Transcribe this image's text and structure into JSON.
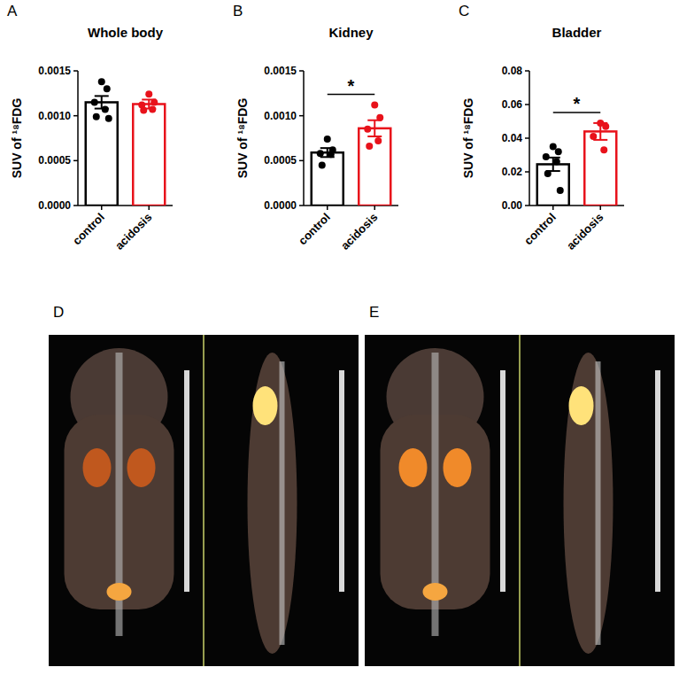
{
  "chart_data": [
    {
      "panel": "A",
      "type": "bar",
      "title": "Whole body",
      "ylabel": "SUV of ¹⁸FDG",
      "categories": [
        "control",
        "acidosis"
      ],
      "values": [
        0.00115,
        0.00113
      ],
      "errors": [
        7e-05,
        5e-05
      ],
      "points": [
        [
          0.00138,
          0.0013,
          0.00115,
          0.00107,
          0.00099,
          0.00097
        ],
        [
          0.00124,
          0.00115,
          0.00112,
          0.00107,
          0.00106
        ]
      ],
      "colors": [
        "#000000",
        "#e8121b"
      ],
      "ylim": [
        0,
        0.0015
      ],
      "yticks": [
        {
          "value": 0,
          "label": "0.0000"
        },
        {
          "value": 0.0005,
          "label": "0.0005"
        },
        {
          "value": 0.001,
          "label": "0.0010"
        },
        {
          "value": 0.0015,
          "label": "0.0015"
        }
      ],
      "grid": false
    },
    {
      "panel": "B",
      "type": "bar",
      "title": "Kidney",
      "ylabel": "SUV of ¹⁸FDG",
      "categories": [
        "control",
        "acidosis"
      ],
      "values": [
        0.00059,
        0.00086
      ],
      "errors": [
        5e-05,
        9e-05
      ],
      "points": [
        [
          0.00074,
          0.00062,
          0.00058,
          0.00057,
          0.00045
        ],
        [
          0.00112,
          0.00098,
          0.00085,
          0.00072,
          0.00066
        ]
      ],
      "colors": [
        "#000000",
        "#e8121b"
      ],
      "ylim": [
        0,
        0.0015
      ],
      "yticks": [
        {
          "value": 0,
          "label": "0.0000"
        },
        {
          "value": 0.0005,
          "label": "0.0005"
        },
        {
          "value": 0.001,
          "label": "0.0010"
        },
        {
          "value": 0.0015,
          "label": "0.0015"
        }
      ],
      "grid": false,
      "significance": "*"
    },
    {
      "panel": "C",
      "type": "bar",
      "title": "Bladder",
      "ylabel": "SUV of ¹⁸FDG",
      "categories": [
        "control",
        "acidosis"
      ],
      "values": [
        0.0245,
        0.044
      ],
      "errors": [
        0.004,
        0.005
      ],
      "points": [
        [
          0.035,
          0.032,
          0.029,
          0.026,
          0.019,
          0.009
        ],
        [
          0.049,
          0.047,
          0.041,
          0.033
        ]
      ],
      "colors": [
        "#000000",
        "#e8121b"
      ],
      "ylim": [
        0,
        0.08
      ],
      "yticks": [
        {
          "value": 0,
          "label": "0.00"
        },
        {
          "value": 0.02,
          "label": "0.02"
        },
        {
          "value": 0.04,
          "label": "0.04"
        },
        {
          "value": 0.06,
          "label": "0.06"
        },
        {
          "value": 0.08,
          "label": "0.08"
        }
      ],
      "grid": false,
      "significance": "*"
    }
  ],
  "images": [
    {
      "label": "D"
    },
    {
      "label": "E"
    }
  ]
}
